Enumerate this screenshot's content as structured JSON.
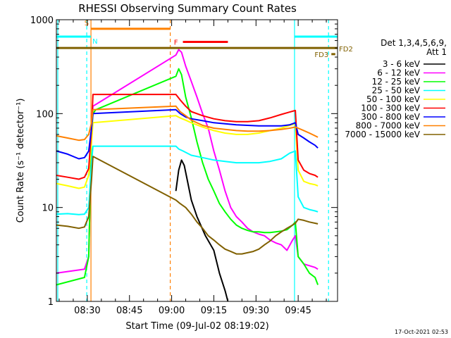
{
  "chart_data": {
    "type": "line",
    "title": "RHESSI Observing Summary Count Rates",
    "xlabel": "Start Time (09-Jul-02 08:19:02)",
    "ylabel": "Count Rate (s⁻¹ detector⁻¹)",
    "yscale": "log",
    "ylim": [
      1,
      1000
    ],
    "xlim_minutes": [
      0,
      100
    ],
    "x_ticks": [
      {
        "label": "08:30",
        "minute": 11
      },
      {
        "label": "08:45",
        "minute": 26
      },
      {
        "label": "09:00",
        "minute": 41
      },
      {
        "label": "09:15",
        "minute": 56
      },
      {
        "label": "09:30",
        "minute": 71
      },
      {
        "label": "09:45",
        "minute": 86
      }
    ],
    "y_ticks": [
      {
        "label": "1",
        "value": 1
      },
      {
        "label": "10",
        "value": 10
      },
      {
        "label": "100",
        "value": 100
      },
      {
        "label": "1000",
        "value": 1000
      }
    ],
    "legend_header": [
      "Det 1,3,4,5,6,9,",
      "Att 1"
    ],
    "series": [
      {
        "name": "3 - 6 keV",
        "color": "#000000",
        "points": [
          [
            42.5,
            15
          ],
          [
            43.5,
            25
          ],
          [
            44.5,
            32
          ],
          [
            45.5,
            28
          ],
          [
            46.5,
            20
          ],
          [
            48,
            12
          ],
          [
            50,
            8
          ],
          [
            53,
            5
          ],
          [
            56,
            3.5
          ],
          [
            58,
            2
          ],
          [
            60,
            1.3
          ],
          [
            61,
            1
          ]
        ]
      },
      {
        "name": "6 - 12 keV",
        "color": "#ff00ff",
        "points": [
          [
            0,
            2
          ],
          [
            10,
            2.2
          ],
          [
            11.5,
            3
          ],
          [
            12.5,
            60
          ],
          [
            13,
            120
          ],
          [
            14,
            125
          ],
          [
            42.5,
            420
          ],
          [
            43.5,
            480
          ],
          [
            44.5,
            450
          ],
          [
            46,
            320
          ],
          [
            48,
            220
          ],
          [
            50,
            150
          ],
          [
            52,
            100
          ],
          [
            54,
            70
          ],
          [
            56,
            40
          ],
          [
            58,
            25
          ],
          [
            60,
            15
          ],
          [
            62,
            10
          ],
          [
            64,
            8
          ],
          [
            66,
            7
          ],
          [
            68,
            6
          ],
          [
            70,
            5.5
          ],
          [
            72,
            5.2
          ],
          [
            74,
            5
          ],
          [
            76,
            4.5
          ],
          [
            78,
            4.2
          ],
          [
            80,
            4
          ],
          [
            82,
            3.5
          ],
          [
            84,
            4.5
          ],
          [
            85,
            5
          ],
          [
            86,
            3
          ],
          [
            88,
            2.5
          ],
          [
            90,
            2.4
          ],
          [
            92,
            2.3
          ],
          [
            93,
            2.2
          ]
        ]
      },
      {
        "name": "12 - 25 keV",
        "color": "#00ff00",
        "points": [
          [
            0,
            1.5
          ],
          [
            10,
            1.8
          ],
          [
            11.5,
            3
          ],
          [
            12.5,
            60
          ],
          [
            13,
            100
          ],
          [
            14,
            110
          ],
          [
            42.5,
            250
          ],
          [
            43.5,
            300
          ],
          [
            44.5,
            260
          ],
          [
            46,
            150
          ],
          [
            48,
            90
          ],
          [
            50,
            50
          ],
          [
            52,
            30
          ],
          [
            54,
            20
          ],
          [
            56,
            15
          ],
          [
            58,
            11
          ],
          [
            60,
            9
          ],
          [
            62,
            7.5
          ],
          [
            64,
            6.5
          ],
          [
            66,
            6
          ],
          [
            68,
            5.7
          ],
          [
            70,
            5.5
          ],
          [
            72,
            5.5
          ],
          [
            74,
            5.4
          ],
          [
            76,
            5.4
          ],
          [
            78,
            5.5
          ],
          [
            80,
            5.6
          ],
          [
            82,
            5.8
          ],
          [
            84,
            6.5
          ],
          [
            85,
            7
          ],
          [
            86,
            3
          ],
          [
            88,
            2.5
          ],
          [
            90,
            2
          ],
          [
            92,
            1.8
          ],
          [
            93,
            1.5
          ]
        ]
      },
      {
        "name": "25 - 50 keV",
        "color": "#00ffff",
        "points": [
          [
            0,
            8.5
          ],
          [
            4,
            8.6
          ],
          [
            8,
            8.4
          ],
          [
            10,
            8.5
          ],
          [
            11.5,
            10
          ],
          [
            12.5,
            30
          ],
          [
            13,
            45
          ],
          [
            42.5,
            45
          ],
          [
            43.5,
            42
          ],
          [
            45,
            40
          ],
          [
            48,
            36
          ],
          [
            52,
            34
          ],
          [
            56,
            32
          ],
          [
            60,
            31
          ],
          [
            64,
            30
          ],
          [
            68,
            30
          ],
          [
            72,
            30
          ],
          [
            76,
            31
          ],
          [
            80,
            33
          ],
          [
            83,
            38
          ],
          [
            85,
            40
          ],
          [
            86,
            13
          ],
          [
            88,
            10
          ],
          [
            90,
            9.5
          ],
          [
            92,
            9.2
          ],
          [
            93,
            9
          ]
        ]
      },
      {
        "name": "50 - 100 keV",
        "color": "#ffff00",
        "points": [
          [
            0,
            18
          ],
          [
            4,
            17
          ],
          [
            8,
            16
          ],
          [
            10,
            16.5
          ],
          [
            11.5,
            22
          ],
          [
            12.5,
            50
          ],
          [
            13,
            80
          ],
          [
            42.5,
            95
          ],
          [
            44,
            90
          ],
          [
            46,
            85
          ],
          [
            48,
            80
          ],
          [
            52,
            72
          ],
          [
            56,
            66
          ],
          [
            60,
            62
          ],
          [
            64,
            60
          ],
          [
            68,
            60
          ],
          [
            72,
            62
          ],
          [
            76,
            66
          ],
          [
            80,
            70
          ],
          [
            83,
            75
          ],
          [
            85,
            78
          ],
          [
            86,
            25
          ],
          [
            88,
            19
          ],
          [
            90,
            18
          ],
          [
            92,
            17.5
          ],
          [
            93,
            17
          ]
        ]
      },
      {
        "name": "100 - 300 keV",
        "color": "#ff0000",
        "points": [
          [
            0,
            22
          ],
          [
            4,
            21
          ],
          [
            8,
            20
          ],
          [
            10,
            21
          ],
          [
            11.5,
            26
          ],
          [
            12.5,
            70
          ],
          [
            13,
            160
          ],
          [
            42.5,
            160
          ],
          [
            44,
            140
          ],
          [
            46,
            120
          ],
          [
            48,
            105
          ],
          [
            52,
            95
          ],
          [
            56,
            88
          ],
          [
            60,
            84
          ],
          [
            64,
            82
          ],
          [
            68,
            82
          ],
          [
            72,
            84
          ],
          [
            76,
            90
          ],
          [
            80,
            98
          ],
          [
            83,
            104
          ],
          [
            85,
            108
          ],
          [
            86,
            32
          ],
          [
            88,
            25
          ],
          [
            90,
            23
          ],
          [
            92,
            22
          ],
          [
            93,
            21
          ]
        ]
      },
      {
        "name": "300 - 800 keV",
        "color": "#0000ff",
        "points": [
          [
            0,
            40
          ],
          [
            4,
            37
          ],
          [
            8,
            33
          ],
          [
            10,
            34
          ],
          [
            11.5,
            40
          ],
          [
            12.5,
            70
          ],
          [
            13,
            100
          ],
          [
            42.5,
            110
          ],
          [
            44,
            100
          ],
          [
            46,
            92
          ],
          [
            48,
            88
          ],
          [
            52,
            84
          ],
          [
            56,
            80
          ],
          [
            60,
            78
          ],
          [
            64,
            76
          ],
          [
            68,
            75
          ],
          [
            72,
            74
          ],
          [
            76,
            74
          ],
          [
            80,
            74
          ],
          [
            83,
            76
          ],
          [
            85,
            80
          ],
          [
            86,
            60
          ],
          [
            88,
            55
          ],
          [
            90,
            50
          ],
          [
            92,
            46
          ],
          [
            93,
            43
          ]
        ]
      },
      {
        "name": "800 - 7000 keV",
        "color": "#ff8000",
        "points": [
          [
            0,
            58
          ],
          [
            4,
            55
          ],
          [
            8,
            52
          ],
          [
            10,
            53
          ],
          [
            11.5,
            60
          ],
          [
            12.5,
            80
          ],
          [
            13,
            110
          ],
          [
            42.5,
            120
          ],
          [
            44,
            105
          ],
          [
            46,
            95
          ],
          [
            48,
            85
          ],
          [
            52,
            75
          ],
          [
            56,
            70
          ],
          [
            60,
            68
          ],
          [
            64,
            66
          ],
          [
            68,
            65
          ],
          [
            72,
            65
          ],
          [
            76,
            66
          ],
          [
            80,
            68
          ],
          [
            83,
            70
          ],
          [
            85,
            72
          ],
          [
            86,
            70
          ],
          [
            88,
            66
          ],
          [
            90,
            62
          ],
          [
            92,
            58
          ],
          [
            93,
            56
          ]
        ]
      },
      {
        "name": "7000 - 15000 keV",
        "color": "#806000",
        "points": [
          [
            0,
            6.5
          ],
          [
            4,
            6.3
          ],
          [
            8,
            6
          ],
          [
            10,
            6.2
          ],
          [
            11.5,
            8
          ],
          [
            12.5,
            20
          ],
          [
            13,
            35
          ],
          [
            42.5,
            12
          ],
          [
            44,
            11
          ],
          [
            46,
            10
          ],
          [
            48,
            8.5
          ],
          [
            50,
            7
          ],
          [
            52,
            6
          ],
          [
            54,
            5
          ],
          [
            56,
            4.5
          ],
          [
            58,
            4
          ],
          [
            60,
            3.6
          ],
          [
            62,
            3.4
          ],
          [
            64,
            3.2
          ],
          [
            66,
            3.2
          ],
          [
            68,
            3.3
          ],
          [
            70,
            3.4
          ],
          [
            72,
            3.6
          ],
          [
            74,
            4
          ],
          [
            76,
            4.4
          ],
          [
            78,
            5
          ],
          [
            80,
            5.5
          ],
          [
            82,
            6
          ],
          [
            84,
            6.5
          ],
          [
            85,
            6.8
          ],
          [
            86,
            7.5
          ],
          [
            88,
            7.3
          ],
          [
            90,
            7
          ],
          [
            92,
            6.8
          ],
          [
            93,
            6.7
          ]
        ]
      }
    ],
    "state_bars": [
      {
        "label": "S",
        "color": "#ff8000",
        "start_min": 12.3,
        "end_min": 40.5,
        "value": 800
      },
      {
        "label": "N",
        "color": "#00ffff",
        "start_min": 0,
        "end_min": 12.3,
        "value": 660
      },
      {
        "label": "N",
        "color": "#00ffff",
        "start_min": 84.7,
        "end_min": 100,
        "value": 660
      },
      {
        "label": "F",
        "color": "#ff0000",
        "start_min": 45,
        "end_min": 61,
        "value": 580
      },
      {
        "label": "FD2",
        "color": "#806000",
        "start_min": 0,
        "end_min": 100,
        "value": 500
      },
      {
        "label": "FD3",
        "color": "#806000",
        "start_min": 97.8,
        "end_min": 99.2,
        "value": 430
      }
    ],
    "vertical_markers": [
      {
        "minute": 12.3,
        "color": "#ff8000",
        "style": "solid"
      },
      {
        "minute": 40.5,
        "color": "#ff8000",
        "style": "dashed"
      },
      {
        "minute": 0.5,
        "color": "#00ffff",
        "style": "solid"
      },
      {
        "minute": 10.8,
        "color": "#00ffff",
        "style": "dashed"
      },
      {
        "minute": 84.7,
        "color": "#00ffff",
        "style": "solid"
      },
      {
        "minute": 96.8,
        "color": "#00ffff",
        "style": "dashed"
      }
    ],
    "bar_labels": [
      {
        "text": "S",
        "color": "#ff8000"
      },
      {
        "text": "N",
        "color": "#00ffff"
      },
      {
        "text": "F",
        "color": "#ff0000"
      },
      {
        "text": "FD2",
        "color": "#806000"
      },
      {
        "text": "FD3",
        "color": "#806000"
      }
    ],
    "timestamp": "17-Oct-2021 02:53"
  }
}
